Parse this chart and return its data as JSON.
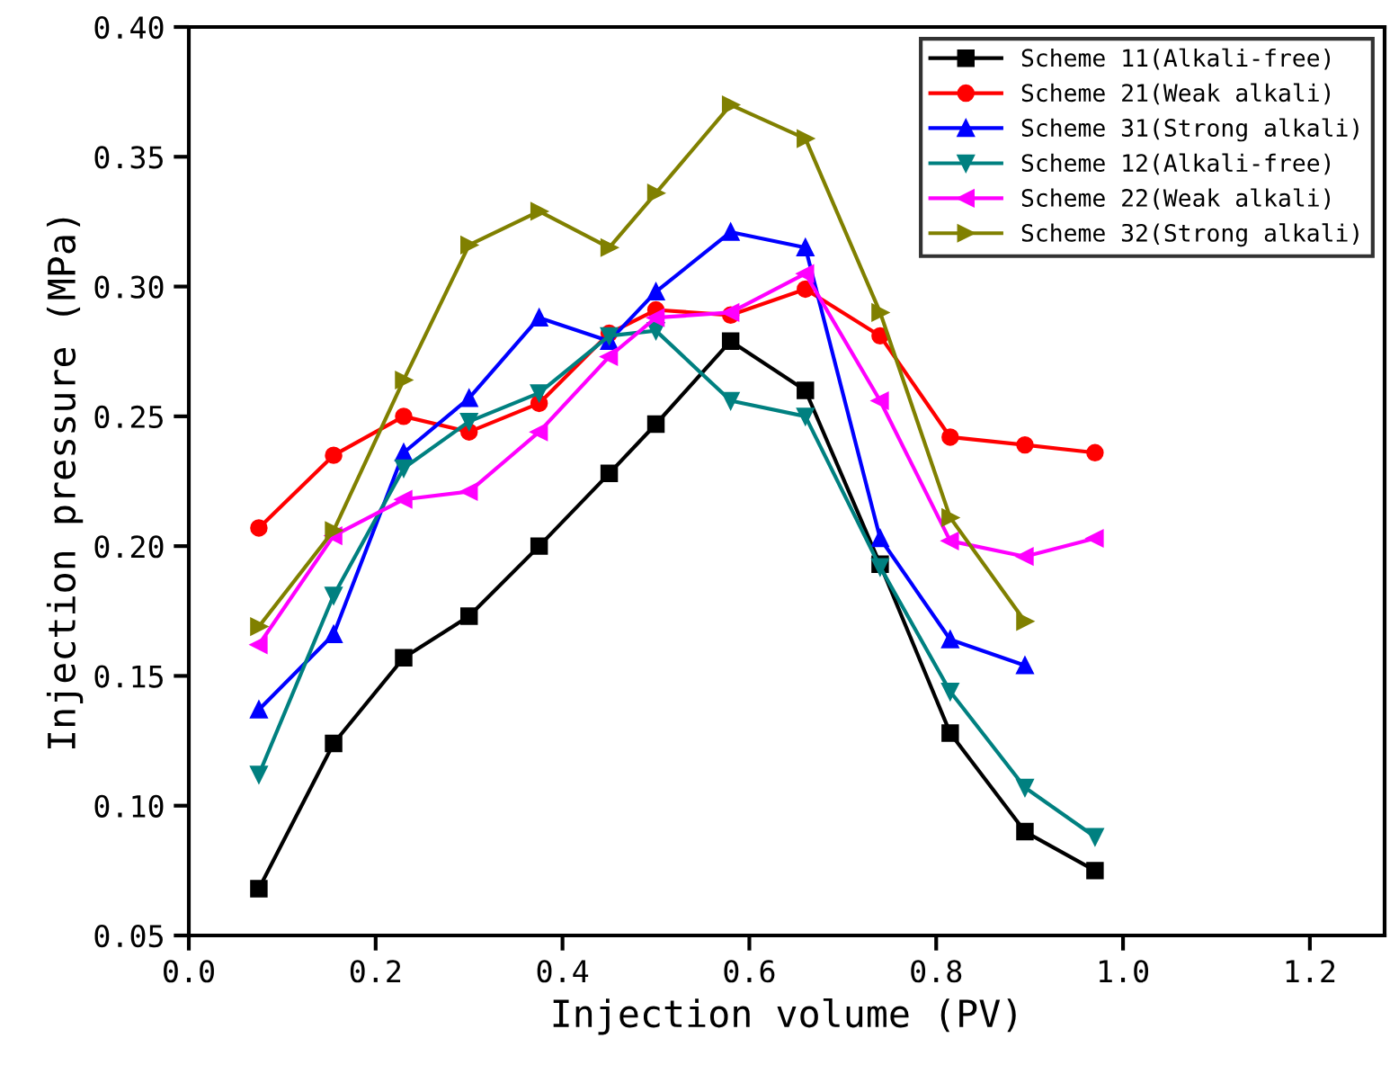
{
  "chart_data": {
    "type": "line",
    "xlabel": "Injection volume (PV)",
    "ylabel": "Injection pressure (MPa)",
    "xlim": [
      0,
      1.28
    ],
    "xticks": [
      {
        "value": 0,
        "label": "0.0"
      },
      {
        "value": 0.2,
        "label": "0.2"
      },
      {
        "value": 0.4,
        "label": "0.4"
      },
      {
        "value": 0.6,
        "label": "0.6"
      },
      {
        "value": 0.8,
        "label": "0.8"
      },
      {
        "value": 1.0,
        "label": "1.0"
      },
      {
        "value": 1.2,
        "label": "1.2"
      }
    ],
    "ylim": [
      0.05,
      0.4
    ],
    "yticks": [
      {
        "value": 0.05,
        "label": "0.05"
      },
      {
        "value": 0.1,
        "label": "0.10"
      },
      {
        "value": 0.15,
        "label": "0.15"
      },
      {
        "value": 0.2,
        "label": "0.20"
      },
      {
        "value": 0.25,
        "label": "0.25"
      },
      {
        "value": 0.3,
        "label": "0.30"
      },
      {
        "value": 0.35,
        "label": "0.35"
      },
      {
        "value": 0.4,
        "label": "0.40"
      }
    ],
    "x": [
      0.075,
      0.155,
      0.23,
      0.3,
      0.375,
      0.45,
      0.5,
      0.58,
      0.66,
      0.74,
      0.815,
      0.895,
      0.97
    ],
    "grid": false,
    "legend": "top right",
    "line_style": "solid",
    "series": [
      {
        "name": "Scheme 11(Alkali-free)",
        "color": "#000000",
        "marker": "square",
        "values": [
          0.068,
          0.124,
          0.157,
          0.173,
          0.2,
          0.228,
          0.247,
          0.279,
          0.26,
          0.193,
          0.128,
          0.09,
          0.075
        ]
      },
      {
        "name": "Scheme 21(Weak alkali)",
        "color": "#ff0000",
        "marker": "circle",
        "values": [
          0.207,
          0.235,
          0.25,
          0.244,
          0.255,
          0.282,
          0.291,
          0.289,
          0.299,
          0.281,
          0.242,
          0.239,
          0.236
        ]
      },
      {
        "name": "Scheme 31(Strong alkali)",
        "color": "#0000ff",
        "marker": "triangle-up",
        "values": [
          0.137,
          0.166,
          0.236,
          0.257,
          0.288,
          0.279,
          0.298,
          0.321,
          0.315,
          0.203,
          0.164,
          0.154,
          null
        ]
      },
      {
        "name": "Scheme 12(Alkali-free)",
        "color": "#008080",
        "marker": "triangle-down",
        "values": [
          0.112,
          0.181,
          0.23,
          0.248,
          0.259,
          0.281,
          0.283,
          0.256,
          0.25,
          0.192,
          0.144,
          0.107,
          0.088
        ]
      },
      {
        "name": "Scheme 22(Weak alkali)",
        "color": "#ff00ff",
        "marker": "triangle-left",
        "values": [
          0.162,
          0.204,
          0.218,
          0.221,
          0.244,
          0.273,
          0.288,
          0.29,
          0.305,
          0.256,
          0.202,
          0.196,
          0.203
        ]
      },
      {
        "name": "Scheme 32(Strong alkali)",
        "color": "#808000",
        "marker": "triangle-right",
        "values": [
          0.169,
          0.206,
          0.264,
          0.316,
          0.329,
          0.315,
          0.336,
          0.37,
          0.357,
          0.29,
          0.211,
          0.171,
          null
        ]
      }
    ]
  }
}
